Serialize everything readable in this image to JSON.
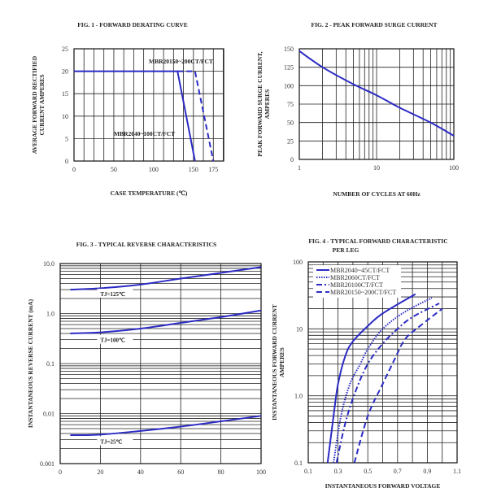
{
  "chart_data": [
    {
      "id": "fig1",
      "type": "line",
      "title": "FIG. 1 - FORWARD DERATING CURVE",
      "xlabel": "CASE TEMPERATURE (℃)",
      "ylabel": [
        "AVERAGE FORWARD RECTIFIED",
        "CURRENT AMPERES"
      ],
      "xscale": "linear",
      "yscale": "linear",
      "xlim": [
        0,
        188
      ],
      "ylim": [
        0,
        25
      ],
      "xticks": [
        0,
        50,
        100,
        150,
        175
      ],
      "xtick_labels": [
        "0",
        "50",
        "100",
        "150",
        "175"
      ],
      "yticks": [
        0,
        5,
        10,
        15,
        20,
        25
      ],
      "ytick_labels": [
        "0",
        "5",
        "10",
        "15",
        "20",
        "25"
      ],
      "grid": true,
      "series": [
        {
          "name": "MBR2040~100CT/FCT",
          "style": "solid",
          "x": [
            0,
            130,
            152
          ],
          "y": [
            20,
            20,
            0
          ]
        },
        {
          "name": "MBR20150~200CT/FCT",
          "style": "dashed",
          "x": [
            130,
            152,
            175
          ],
          "y": [
            20,
            20,
            0
          ]
        }
      ],
      "annotations": [
        "MBR20150~200CT/FCT",
        "MBR2040~100CT/FCT"
      ]
    },
    {
      "id": "fig2",
      "type": "line",
      "title": "FIG. 2 - PEAK FORWARD SURGE CURRENT",
      "xlabel": "NUMBER OF CYCLES AT 60Hz",
      "ylabel": [
        "PEAK FORWARD SURGE CURRENT,",
        "AMPERES"
      ],
      "xscale": "log",
      "yscale": "linear",
      "xlim": [
        1,
        100
      ],
      "ylim": [
        0,
        150
      ],
      "xticks": [
        1,
        10,
        100
      ],
      "xtick_labels": [
        "1",
        "10",
        "100"
      ],
      "yticks": [
        0,
        25,
        50,
        75,
        100,
        125,
        150
      ],
      "ytick_labels": [
        "0",
        "25",
        "50",
        "75",
        "100",
        "125",
        "150"
      ],
      "grid": true,
      "series": [
        {
          "style": "solid",
          "x": [
            1,
            2,
            5,
            10,
            20,
            50,
            100
          ],
          "y": [
            147,
            125,
            102,
            87,
            70,
            50,
            32
          ]
        }
      ]
    },
    {
      "id": "fig3",
      "type": "line",
      "title": "FIG. 3 - TYPICAL REVERSE CHARACTERISTICS",
      "xlabel": "",
      "ylabel": [
        "INSTANTANEOUS REVERSE CURRENT (mA)"
      ],
      "xscale": "linear",
      "yscale": "log",
      "xlim": [
        0,
        100
      ],
      "ylim": [
        0.001,
        10
      ],
      "xticks": [
        0,
        20,
        40,
        60,
        80,
        100
      ],
      "xtick_labels": [
        "0",
        "20",
        "40",
        "60",
        "80",
        "100"
      ],
      "yticks": [
        0.001,
        0.01,
        0.1,
        1,
        10
      ],
      "ytick_labels": [
        "0.001",
        "0.01",
        "0.1",
        "1.0",
        "10.0"
      ],
      "grid": true,
      "series": [
        {
          "name": "TJ=125℃",
          "style": "solid",
          "x": [
            5,
            20,
            40,
            60,
            80,
            100
          ],
          "y": [
            3.0,
            3.2,
            3.8,
            5.0,
            6.5,
            8.5
          ]
        },
        {
          "name": "TJ=100℃",
          "style": "solid",
          "x": [
            5,
            20,
            40,
            60,
            80,
            100
          ],
          "y": [
            0.4,
            0.42,
            0.5,
            0.65,
            0.85,
            1.15
          ]
        },
        {
          "name": "TJ=25℃",
          "style": "solid",
          "x": [
            5,
            20,
            40,
            60,
            80,
            100
          ],
          "y": [
            0.0037,
            0.0038,
            0.0045,
            0.0055,
            0.007,
            0.009
          ]
        }
      ],
      "annotations": [
        "TJ=125℃",
        "TJ=100℃",
        "TJ=25℃"
      ]
    },
    {
      "id": "fig4",
      "type": "line",
      "title": [
        "FIG. 4 - TYPICAL FORWARD CHARACTERISTIC",
        "PER LEG"
      ],
      "xlabel": "INSTANTANEOUS FORWARD VOLTAGE",
      "ylabel": [
        "INSTANTANEOUS FORWARD CURRENT",
        "AMPERES"
      ],
      "xscale": "linear",
      "yscale": "log",
      "xlim": [
        0.1,
        1.1
      ],
      "ylim": [
        0.1,
        100
      ],
      "xticks": [
        0.1,
        0.3,
        0.5,
        0.7,
        0.9,
        1.1
      ],
      "xtick_labels": [
        "0.1",
        "0.3",
        "0.5",
        "0.7",
        "0.9",
        "1.1"
      ],
      "yticks": [
        0.1,
        1,
        10,
        100
      ],
      "ytick_labels": [
        "0.1",
        "1.0",
        "10",
        "100"
      ],
      "grid": true,
      "legend": "top-left",
      "series": [
        {
          "name": "MBR2040~45CT/FCT",
          "style": "solid",
          "x": [
            0.23,
            0.27,
            0.3,
            0.35,
            0.4,
            0.5,
            0.6,
            0.82
          ],
          "y": [
            0.1,
            0.5,
            1.5,
            4,
            6.5,
            11,
            17,
            33
          ]
        },
        {
          "name": "MBR2060CT/FCT",
          "style": "dotted",
          "x": [
            0.27,
            0.32,
            0.38,
            0.45,
            0.5,
            0.6,
            0.75,
            0.93
          ],
          "y": [
            0.1,
            0.5,
            1.5,
            3,
            5,
            10,
            18,
            29
          ]
        },
        {
          "name": "MBR20100CT/FCT",
          "style": "dashdot",
          "x": [
            0.29,
            0.35,
            0.42,
            0.5,
            0.6,
            0.7,
            0.8,
            0.98
          ],
          "y": [
            0.1,
            0.4,
            1.2,
            3,
            6,
            10,
            15,
            24
          ]
        },
        {
          "name": "MBR20150~200CT/FCT",
          "style": "dashed",
          "x": [
            0.41,
            0.5,
            0.6,
            0.68,
            0.75,
            0.85,
            1.0
          ],
          "y": [
            0.1,
            0.5,
            1.5,
            3.5,
            7,
            11,
            20
          ]
        }
      ]
    }
  ],
  "colors": {
    "curve": "#2b2bc4",
    "grid": "#222222"
  }
}
